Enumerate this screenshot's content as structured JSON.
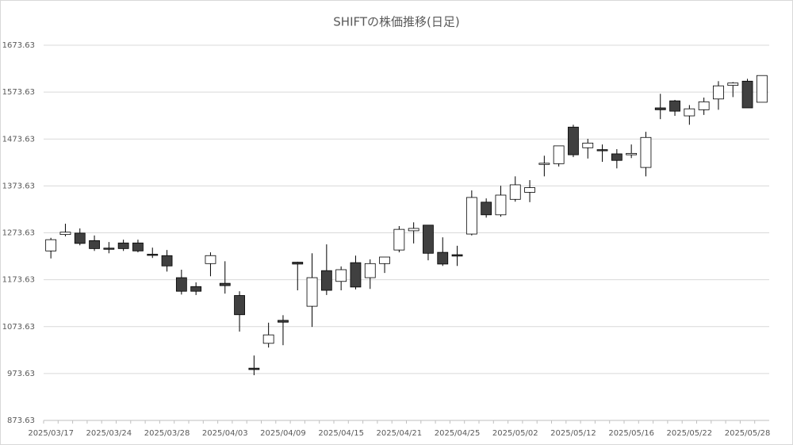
{
  "chart_data": {
    "type": "candlestick",
    "title": "SHIFTの株価推移(日足)",
    "categories": [
      "2025/03/17",
      null,
      null,
      null,
      "2025/03/24",
      null,
      null,
      null,
      "2025/03/28",
      null,
      null,
      null,
      "2025/04/03",
      null,
      null,
      null,
      "2025/04/09",
      null,
      null,
      null,
      "2025/04/15",
      null,
      null,
      null,
      "2025/04/21",
      null,
      null,
      null,
      "2025/04/25",
      null,
      null,
      null,
      "2025/05/02",
      null,
      null,
      null,
      "2025/05/12",
      null,
      null,
      null,
      "2025/05/16",
      null,
      null,
      null,
      "2025/05/22",
      null,
      null,
      null,
      "2025/05/28",
      null
    ],
    "open": [
      1235,
      1270,
      1273,
      1257,
      1241,
      1252,
      1252,
      1228,
      1225,
      1178,
      1159,
      1208,
      1166,
      1140,
      985,
      1038,
      1087,
      1211,
      1117,
      1193,
      1170,
      1210,
      1178,
      1208,
      1237,
      1278,
      1290,
      1232,
      1227,
      1271,
      1339,
      1312,
      1345,
      1360,
      1420,
      1421,
      1499,
      1455,
      1451,
      1442,
      1440,
      1413,
      1540,
      1555,
      1523,
      1536,
      1559,
      1588,
      1597,
      1552
    ],
    "high": [
      1263,
      1293,
      1283,
      1268,
      1254,
      1259,
      1259,
      1242,
      1237,
      1195,
      1168,
      1232,
      1213,
      1149,
      1012,
      1082,
      1098,
      1212,
      1230,
      1249,
      1202,
      1225,
      1217,
      1222,
      1288,
      1296,
      1290,
      1264,
      1246,
      1364,
      1347,
      1374,
      1394,
      1386,
      1438,
      1459,
      1504,
      1474,
      1462,
      1452,
      1462,
      1489,
      1570,
      1557,
      1546,
      1562,
      1597,
      1595,
      1602,
      1609
    ],
    "low": [
      1219,
      1266,
      1247,
      1235,
      1230,
      1235,
      1232,
      1220,
      1191,
      1142,
      1141,
      1181,
      1144,
      1063,
      970,
      1029,
      1034,
      1151,
      1073,
      1141,
      1151,
      1153,
      1154,
      1188,
      1232,
      1251,
      1215,
      1203,
      1203,
      1268,
      1306,
      1308,
      1340,
      1339,
      1394,
      1415,
      1435,
      1432,
      1425,
      1411,
      1433,
      1394,
      1516,
      1523,
      1504,
      1525,
      1536,
      1563,
      1540,
      1552
    ],
    "close": [
      1259,
      1275,
      1251,
      1240,
      1240,
      1240,
      1235,
      1226,
      1203,
      1149,
      1149,
      1225,
      1161,
      1099,
      982,
      1056,
      1083,
      1207,
      1178,
      1151,
      1195,
      1158,
      1208,
      1222,
      1281,
      1283,
      1230,
      1207,
      1224,
      1349,
      1312,
      1354,
      1376,
      1370,
      1422,
      1459,
      1440,
      1465,
      1450,
      1428,
      1443,
      1477,
      1536,
      1533,
      1538,
      1553,
      1587,
      1593,
      1540,
      1609
    ],
    "up_color": "#ffffff",
    "down_color": "#404040",
    "ylim": [
      873.63,
      1673.63
    ],
    "yticks": [
      873.63,
      973.63,
      1073.63,
      1173.63,
      1273.63,
      1373.63,
      1473.63,
      1573.63,
      1673.63
    ],
    "grid": true
  }
}
